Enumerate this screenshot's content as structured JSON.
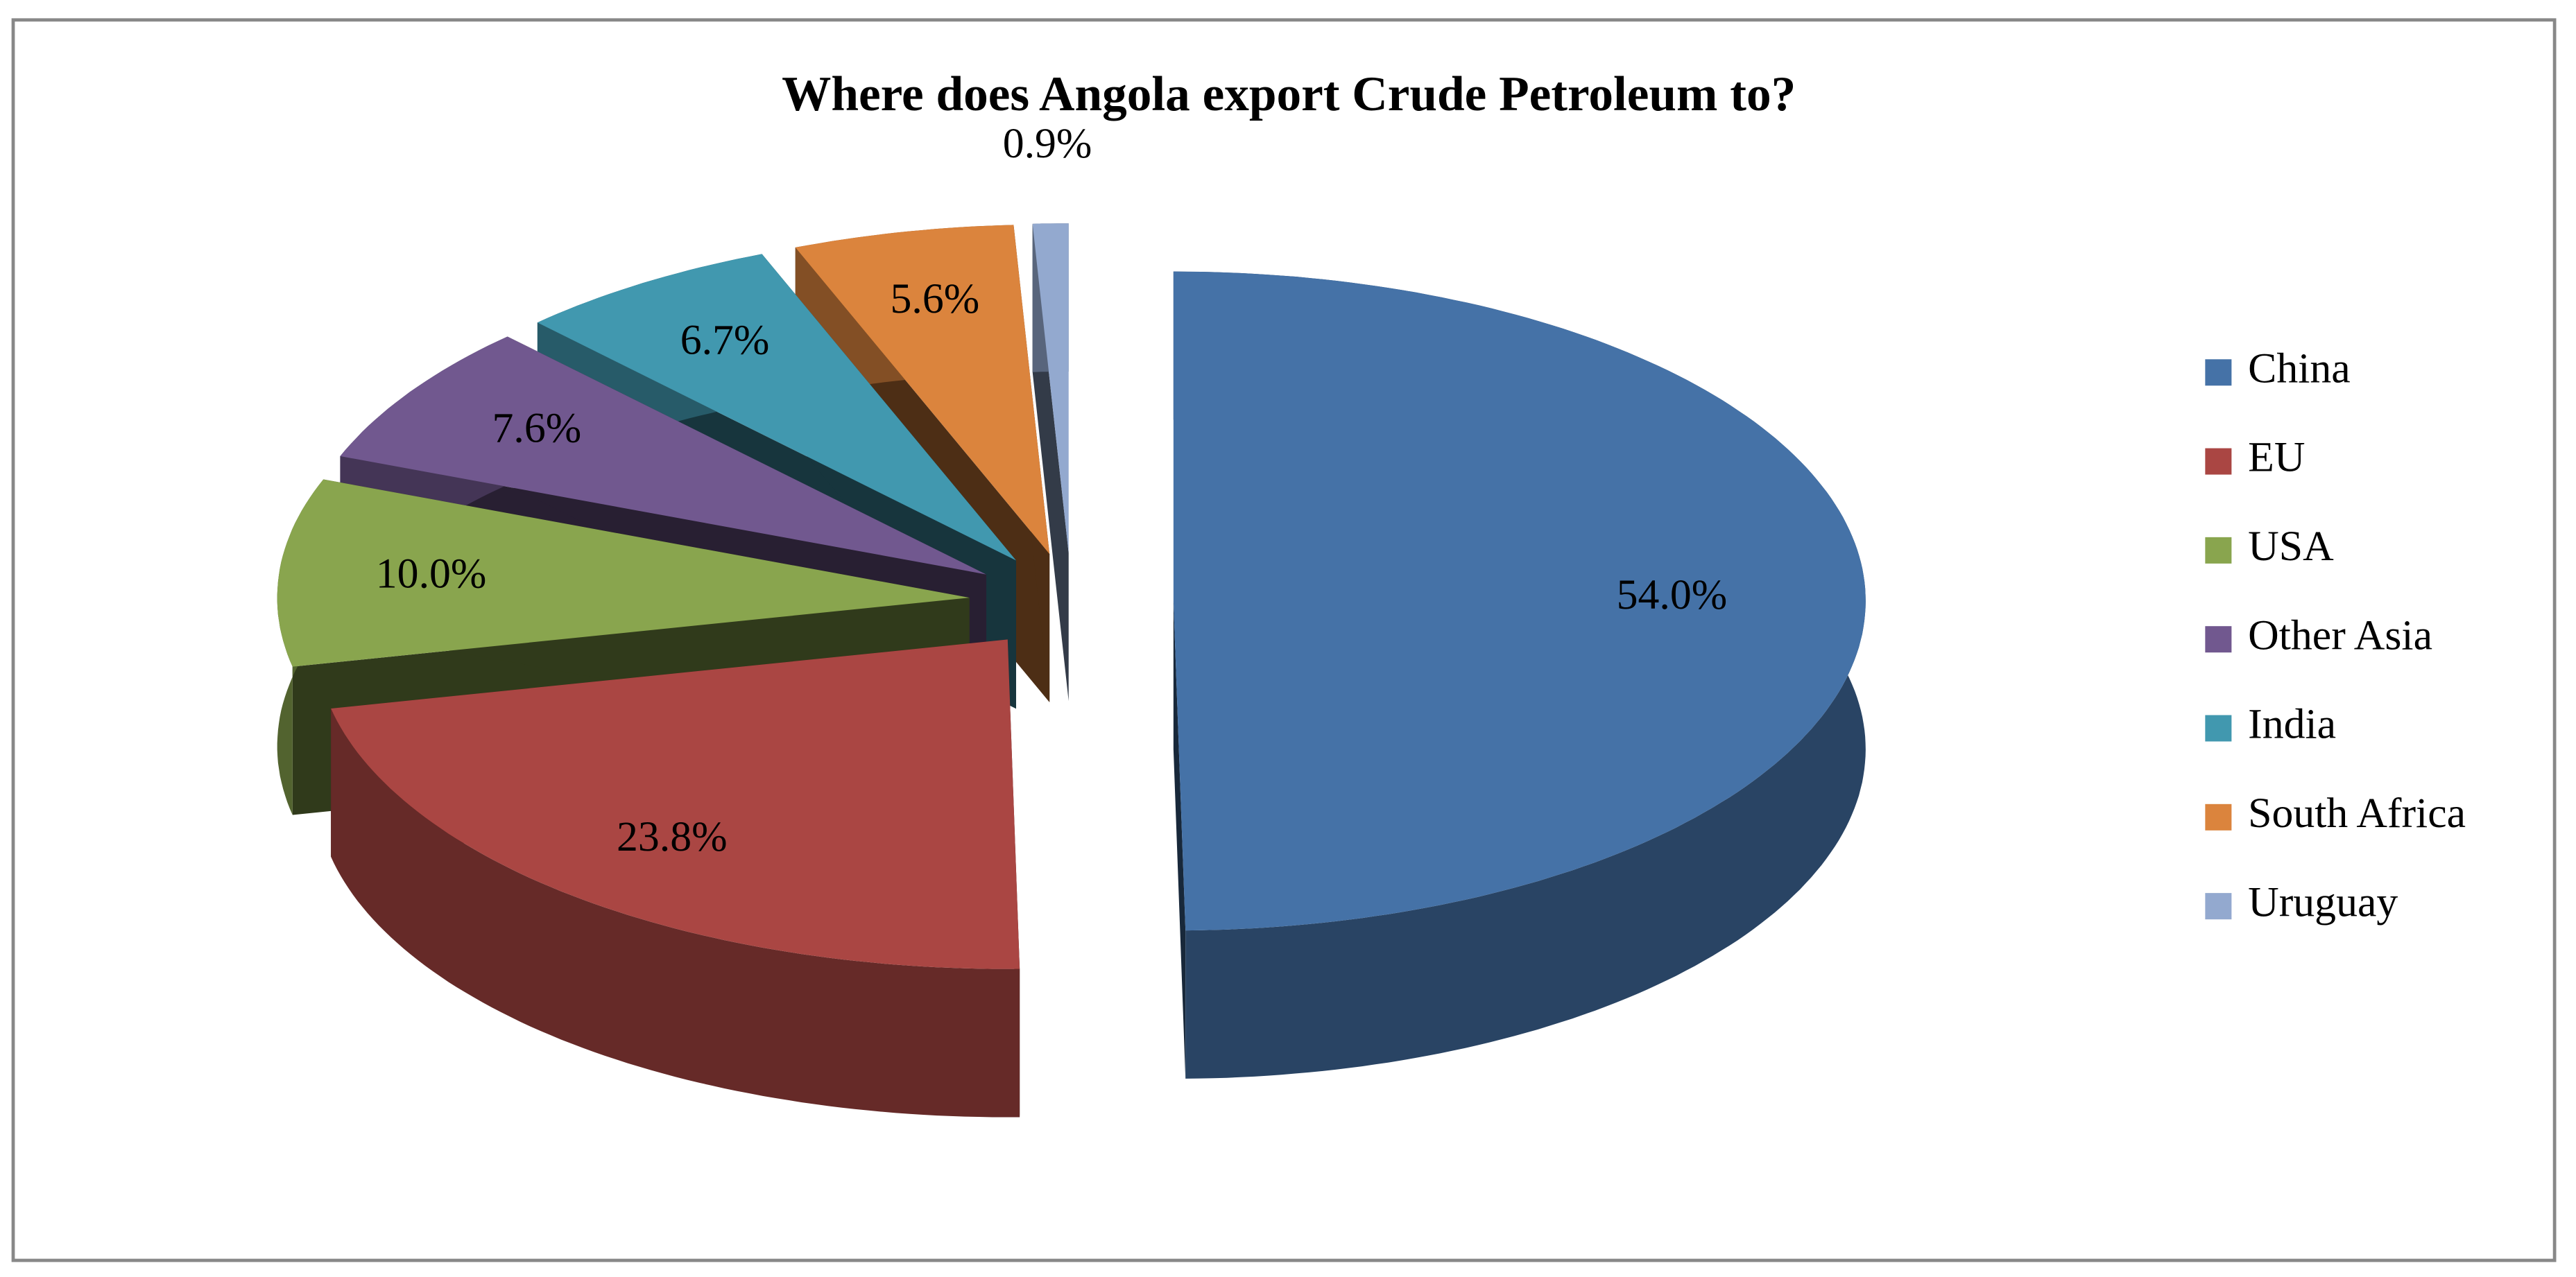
{
  "chart_data": {
    "type": "pie",
    "title": "Where does Angola export Crude Petroleum to?",
    "categories": [
      "China",
      "EU",
      "USA",
      "Other Asia",
      "India",
      "South Africa",
      "Uruguay"
    ],
    "values": [
      54.0,
      23.8,
      10.0,
      7.6,
      6.7,
      5.6,
      0.9
    ],
    "value_labels": [
      "54.0%",
      "23.8%",
      "10.0%",
      "7.6%",
      "6.7%",
      "5.6%",
      "0.9%"
    ],
    "colors": [
      "#4572a7",
      "#aa4643",
      "#89a54e",
      "#71588f",
      "#4198af",
      "#db843d",
      "#93a9cf"
    ],
    "legend": "right"
  }
}
